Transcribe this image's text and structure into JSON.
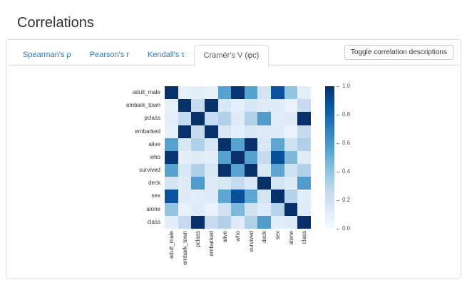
{
  "header": {
    "title": "Correlations"
  },
  "tabs": [
    {
      "label": "Spearman's ρ",
      "active": false
    },
    {
      "label": "Pearson's r",
      "active": false
    },
    {
      "label": "Kendall's τ",
      "active": false
    },
    {
      "label": "Cramér's V (φc)",
      "active": true
    }
  ],
  "toolbar": {
    "toggle_button_label": "Toggle correlation descriptions"
  },
  "colors": {
    "tab_link": "#337ab7",
    "active_tab_text": "#555555",
    "panel_border": "#dddddd",
    "button_border": "#cccccc",
    "heatmap_max": "#08306b",
    "heatmap_min": "#f7fbff"
  },
  "chart_data": {
    "type": "heatmap",
    "colormap": "Blues",
    "vmin": 0.0,
    "vmax": 1.0,
    "categories": [
      "adult_male",
      "embark_town",
      "pclass",
      "embarked",
      "alive",
      "who",
      "survived",
      "deck",
      "sex",
      "alone",
      "class"
    ],
    "matrix": [
      [
        1.0,
        0.08,
        0.1,
        0.08,
        0.56,
        0.98,
        0.56,
        0.18,
        0.87,
        0.4,
        0.1
      ],
      [
        0.08,
        1.0,
        0.25,
        1.0,
        0.16,
        0.09,
        0.16,
        0.12,
        0.12,
        0.07,
        0.25
      ],
      [
        0.1,
        0.25,
        1.0,
        0.25,
        0.32,
        0.12,
        0.32,
        0.58,
        0.11,
        0.12,
        1.0
      ],
      [
        0.08,
        1.0,
        0.25,
        1.0,
        0.16,
        0.09,
        0.16,
        0.12,
        0.12,
        0.07,
        0.25
      ],
      [
        0.56,
        0.16,
        0.32,
        0.16,
        1.0,
        0.56,
        1.0,
        0.15,
        0.54,
        0.2,
        0.32
      ],
      [
        0.98,
        0.09,
        0.12,
        0.09,
        0.56,
        1.0,
        0.56,
        0.25,
        0.88,
        0.45,
        0.12
      ],
      [
        0.56,
        0.16,
        0.32,
        0.16,
        1.0,
        0.56,
        1.0,
        0.15,
        0.54,
        0.2,
        0.32
      ],
      [
        0.18,
        0.12,
        0.58,
        0.12,
        0.15,
        0.25,
        0.15,
        1.0,
        0.18,
        0.12,
        0.58
      ],
      [
        0.87,
        0.12,
        0.11,
        0.12,
        0.54,
        0.88,
        0.54,
        0.18,
        1.0,
        0.3,
        0.11
      ],
      [
        0.4,
        0.07,
        0.12,
        0.07,
        0.2,
        0.45,
        0.2,
        0.12,
        0.3,
        1.0,
        0.12
      ],
      [
        0.1,
        0.25,
        1.0,
        0.25,
        0.32,
        0.12,
        0.32,
        0.58,
        0.11,
        0.12,
        1.0
      ]
    ],
    "colorbar_ticks": [
      1.0,
      0.8,
      0.6,
      0.4,
      0.2,
      0.0
    ]
  }
}
